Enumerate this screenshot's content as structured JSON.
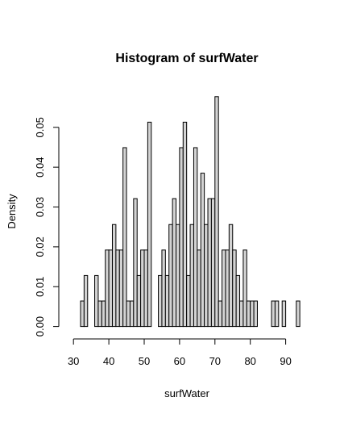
{
  "chart_data": {
    "type": "bar",
    "title": "Histogram of surfWater",
    "xlabel": "surfWater",
    "ylabel": "Density",
    "bin_width": 1,
    "bins_start": [
      32,
      33,
      34,
      35,
      36,
      37,
      38,
      39,
      40,
      41,
      42,
      43,
      44,
      45,
      46,
      47,
      48,
      49,
      50,
      51,
      52,
      53,
      54,
      55,
      56,
      57,
      58,
      59,
      60,
      61,
      62,
      63,
      64,
      65,
      66,
      67,
      68,
      69,
      70,
      71,
      72,
      73,
      74,
      75,
      76,
      77,
      78,
      79,
      80,
      81,
      82,
      83,
      84,
      85,
      86,
      87,
      88,
      89,
      90,
      91,
      92,
      93
    ],
    "values": [
      0.0064,
      0.0128,
      0,
      0,
      0.0128,
      0.0064,
      0.0064,
      0.0192,
      0.0192,
      0.0256,
      0.0192,
      0.0192,
      0.0449,
      0.0064,
      0.0064,
      0.0321,
      0.0128,
      0.0192,
      0.0192,
      0.0513,
      0,
      0,
      0.0128,
      0.0192,
      0.0128,
      0.0256,
      0.0321,
      0.0256,
      0.0449,
      0.0513,
      0.0128,
      0.0256,
      0.0449,
      0.0192,
      0.0385,
      0.0256,
      0.0321,
      0.0321,
      0.0577,
      0.0064,
      0.0192,
      0.0192,
      0.0256,
      0.0192,
      0.0128,
      0.0064,
      0.0192,
      0.0064,
      0.0064,
      0.0064,
      0,
      0,
      0,
      0,
      0.0064,
      0.0064,
      0,
      0.0064,
      0,
      0,
      0,
      0.0064
    ],
    "x_ticks": [
      30,
      40,
      50,
      60,
      70,
      80,
      90
    ],
    "y_ticks": [
      0.0,
      0.01,
      0.02,
      0.03,
      0.04,
      0.05
    ],
    "y_tick_labels": [
      "0.00",
      "0.01",
      "0.02",
      "0.03",
      "0.04",
      "0.05"
    ],
    "xlim": [
      30,
      94
    ],
    "ylim": [
      0,
      0.0577
    ],
    "grid": false,
    "colors": {
      "bar_fill": "#d3d3d3",
      "bar_stroke": "#000000",
      "axis": "#000000"
    }
  }
}
